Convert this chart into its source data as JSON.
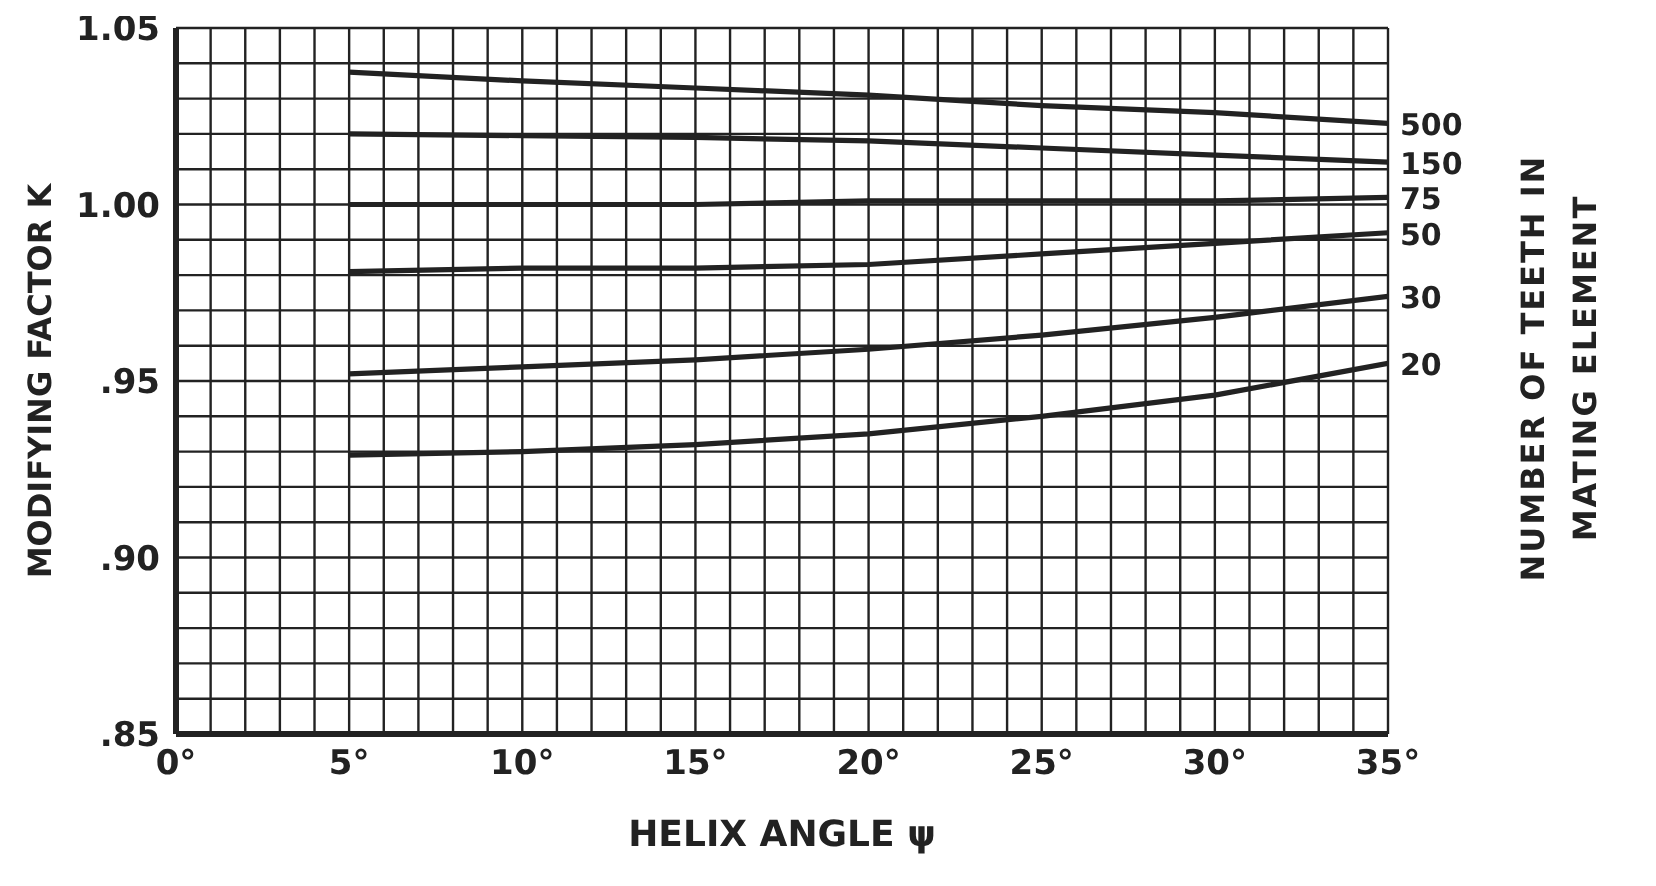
{
  "chart_data": {
    "type": "line",
    "xlabel": "HELIX ANGLE ψ",
    "ylabel": "MODIFYING FACTOR K",
    "y2label": "NUMBER OF TEETH IN MATING ELEMENT",
    "x": [
      5,
      10,
      15,
      20,
      25,
      30,
      35
    ],
    "series": [
      {
        "name": "500",
        "color": "#222222",
        "values": [
          1.0375,
          1.035,
          1.033,
          1.031,
          1.028,
          1.026,
          1.023
        ]
      },
      {
        "name": "150",
        "color": "#222222",
        "values": [
          1.02,
          1.0195,
          1.019,
          1.018,
          1.016,
          1.014,
          1.012
        ]
      },
      {
        "name": "75",
        "color": "#222222",
        "values": [
          1.0,
          1.0,
          1.0,
          1.001,
          1.001,
          1.001,
          1.002
        ]
      },
      {
        "name": "50",
        "color": "#222222",
        "values": [
          0.981,
          0.982,
          0.982,
          0.983,
          0.986,
          0.989,
          0.992
        ]
      },
      {
        "name": "30",
        "color": "#222222",
        "values": [
          0.952,
          0.954,
          0.956,
          0.959,
          0.963,
          0.968,
          0.974
        ]
      },
      {
        "name": "20",
        "color": "#222222",
        "values": [
          0.929,
          0.93,
          0.932,
          0.935,
          0.94,
          0.946,
          0.955
        ]
      }
    ],
    "xlim": [
      0,
      35
    ],
    "xticks": [
      {
        "value": 0,
        "label": "0°"
      },
      {
        "value": 1,
        "label": null
      },
      {
        "value": 2,
        "label": null
      },
      {
        "value": 3,
        "label": null
      },
      {
        "value": 4,
        "label": null
      },
      {
        "value": 5,
        "label": "5°"
      },
      {
        "value": 6,
        "label": null
      },
      {
        "value": 7,
        "label": null
      },
      {
        "value": 8,
        "label": null
      },
      {
        "value": 9,
        "label": null
      },
      {
        "value": 10,
        "label": "10°"
      },
      {
        "value": 11,
        "label": null
      },
      {
        "value": 12,
        "label": null
      },
      {
        "value": 13,
        "label": null
      },
      {
        "value": 14,
        "label": null
      },
      {
        "value": 15,
        "label": "15°"
      },
      {
        "value": 16,
        "label": null
      },
      {
        "value": 17,
        "label": null
      },
      {
        "value": 18,
        "label": null
      },
      {
        "value": 19,
        "label": null
      },
      {
        "value": 20,
        "label": "20°"
      },
      {
        "value": 21,
        "label": null
      },
      {
        "value": 22,
        "label": null
      },
      {
        "value": 23,
        "label": null
      },
      {
        "value": 24,
        "label": null
      },
      {
        "value": 25,
        "label": "25°"
      },
      {
        "value": 26,
        "label": null
      },
      {
        "value": 27,
        "label": null
      },
      {
        "value": 28,
        "label": null
      },
      {
        "value": 29,
        "label": null
      },
      {
        "value": 30,
        "label": "30°"
      },
      {
        "value": 31,
        "label": null
      },
      {
        "value": 32,
        "label": null
      },
      {
        "value": 33,
        "label": null
      },
      {
        "value": 34,
        "label": null
      },
      {
        "value": 35,
        "label": "35°"
      }
    ],
    "ylim": [
      0.85,
      1.05
    ],
    "yticks": [
      {
        "value": 0.85,
        "label": ".85"
      },
      {
        "value": 0.86,
        "label": null
      },
      {
        "value": 0.87,
        "label": null
      },
      {
        "value": 0.88,
        "label": null
      },
      {
        "value": 0.89,
        "label": null
      },
      {
        "value": 0.9,
        "label": ".90"
      },
      {
        "value": 0.91,
        "label": null
      },
      {
        "value": 0.92,
        "label": null
      },
      {
        "value": 0.93,
        "label": null
      },
      {
        "value": 0.94,
        "label": null
      },
      {
        "value": 0.95,
        "label": ".95"
      },
      {
        "value": 0.96,
        "label": null
      },
      {
        "value": 0.97,
        "label": null
      },
      {
        "value": 0.98,
        "label": null
      },
      {
        "value": 0.99,
        "label": null
      },
      {
        "value": 1.0,
        "label": "1.00"
      },
      {
        "value": 1.01,
        "label": null
      },
      {
        "value": 1.02,
        "label": null
      },
      {
        "value": 1.03,
        "label": null
      },
      {
        "value": 1.04,
        "label": null
      },
      {
        "value": 1.05,
        "label": "1.05"
      }
    ],
    "grid": true,
    "legend": false,
    "marker": "none",
    "line_style": "solid"
  }
}
